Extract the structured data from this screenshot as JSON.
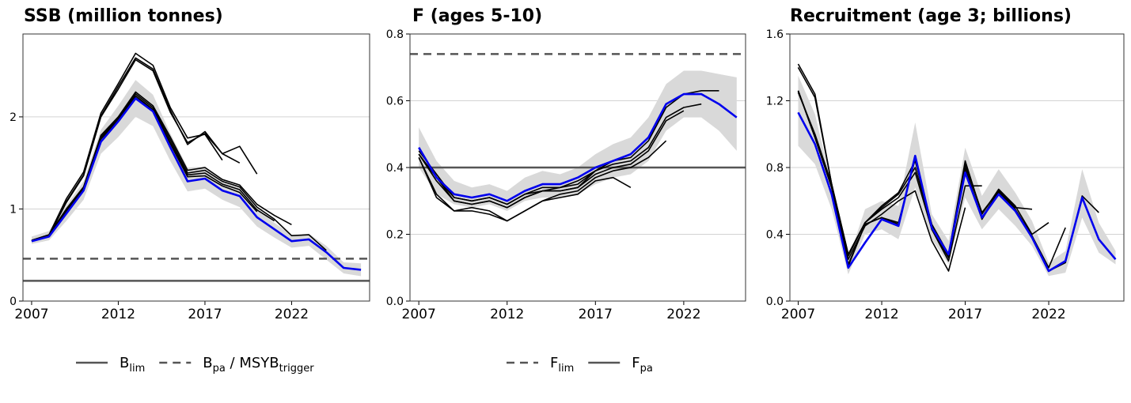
{
  "colors": {
    "band": "#d9d9d9",
    "grid": "#d3d3d3",
    "retro": "#000000",
    "current": "#0000ee",
    "refline": "#555555"
  },
  "chart_data": [
    {
      "id": "ssb",
      "type": "line",
      "title": "SSB (million tonnes)",
      "xlim": [
        2006.5,
        2026.5
      ],
      "ylim": [
        0,
        2.9
      ],
      "xticks": [
        "2007",
        "2012",
        "2017",
        "2022"
      ],
      "yticks": [
        "0",
        "1",
        "2"
      ],
      "band": {
        "x": [
          2007,
          2008,
          2009,
          2010,
          2011,
          2012,
          2013,
          2014,
          2015,
          2016,
          2017,
          2018,
          2019,
          2020,
          2021,
          2022,
          2023,
          2024,
          2025,
          2026
        ],
        "lower": [
          0.62,
          0.66,
          0.87,
          1.1,
          1.6,
          1.78,
          2.0,
          1.9,
          1.52,
          1.19,
          1.22,
          1.1,
          1.02,
          0.81,
          0.69,
          0.58,
          0.6,
          0.45,
          0.3,
          0.27
        ],
        "upper": [
          0.7,
          0.76,
          1.04,
          1.3,
          1.86,
          2.12,
          2.4,
          2.24,
          1.82,
          1.45,
          1.46,
          1.3,
          1.24,
          0.99,
          0.85,
          0.72,
          0.73,
          0.6,
          0.42,
          0.41
        ]
      },
      "retro_series": [
        {
          "x": [
            2007,
            2008,
            2009,
            2010,
            2011,
            2012,
            2013,
            2014,
            2015,
            2016,
            2017,
            2018
          ],
          "values": [
            0.66,
            0.72,
            1.11,
            1.4,
            2.04,
            2.36,
            2.69,
            2.56,
            2.1,
            1.77,
            1.81,
            1.53
          ]
        },
        {
          "x": [
            2007,
            2008,
            2009,
            2010,
            2011,
            2012,
            2013,
            2014,
            2015,
            2016,
            2017,
            2018,
            2019
          ],
          "values": [
            0.65,
            0.71,
            1.08,
            1.37,
            2.01,
            2.33,
            2.64,
            2.52,
            2.07,
            1.7,
            1.84,
            1.6,
            1.5
          ]
        },
        {
          "x": [
            2007,
            2008,
            2009,
            2010,
            2011,
            2012,
            2013,
            2014,
            2015,
            2016,
            2017,
            2018,
            2019,
            2020
          ],
          "values": [
            0.65,
            0.71,
            1.07,
            1.36,
            2.0,
            2.3,
            2.62,
            2.5,
            2.05,
            1.72,
            1.82,
            1.6,
            1.68,
            1.38
          ]
        },
        {
          "x": [
            2007,
            2008,
            2009,
            2010,
            2011,
            2012,
            2013,
            2014,
            2015,
            2016,
            2017,
            2018,
            2019,
            2020,
            2021,
            2022
          ],
          "values": [
            0.66,
            0.72,
            1.0,
            1.24,
            1.8,
            2.0,
            2.27,
            2.12,
            1.78,
            1.42,
            1.45,
            1.32,
            1.26,
            1.05,
            0.93,
            0.83
          ]
        },
        {
          "x": [
            2007,
            2008,
            2009,
            2010,
            2011,
            2012,
            2013,
            2014,
            2015,
            2016,
            2017,
            2018,
            2019,
            2020,
            2021,
            2022,
            2023,
            2024
          ],
          "values": [
            0.65,
            0.71,
            0.99,
            1.23,
            1.78,
            1.99,
            2.25,
            2.1,
            1.75,
            1.39,
            1.42,
            1.3,
            1.24,
            1.02,
            0.89,
            0.71,
            0.72,
            0.55
          ]
        },
        {
          "x": [
            2007,
            2008,
            2009,
            2010,
            2011,
            2012,
            2013,
            2014,
            2015,
            2016,
            2017,
            2018,
            2019,
            2020,
            2021
          ],
          "values": [
            0.65,
            0.71,
            0.98,
            1.22,
            1.77,
            1.97,
            2.23,
            2.08,
            1.72,
            1.37,
            1.39,
            1.27,
            1.21,
            0.99,
            0.87
          ]
        },
        {
          "x": [
            2007,
            2008,
            2009,
            2010,
            2011,
            2012,
            2013,
            2014,
            2015,
            2016,
            2017,
            2018,
            2019,
            2020
          ],
          "values": [
            0.65,
            0.71,
            0.97,
            1.21,
            1.76,
            1.96,
            2.21,
            2.07,
            1.71,
            1.35,
            1.36,
            1.25,
            1.18,
            0.97
          ]
        }
      ],
      "current_series": {
        "x": [
          2007,
          2008,
          2009,
          2010,
          2011,
          2012,
          2013,
          2014,
          2015,
          2016,
          2017,
          2018,
          2019,
          2020,
          2021,
          2022,
          2023,
          2024,
          2025,
          2026
        ],
        "values": [
          0.65,
          0.7,
          0.95,
          1.2,
          1.73,
          1.95,
          2.2,
          2.06,
          1.67,
          1.3,
          1.33,
          1.2,
          1.14,
          0.91,
          0.78,
          0.65,
          0.67,
          0.53,
          0.36,
          0.34
        ]
      },
      "ref_lines": [
        {
          "value": 0.22,
          "style": "solid"
        },
        {
          "value": 0.46,
          "style": "dashed"
        }
      ],
      "legend": [
        {
          "style": "solid",
          "main": "B",
          "sub": "lim",
          "after": ""
        },
        {
          "style": "dashed",
          "main": "B",
          "sub": "pa",
          "after": " / MSYB",
          "sub2": "trigger"
        }
      ]
    },
    {
      "id": "f",
      "type": "line",
      "title": "F (ages 5-10)",
      "xlim": [
        2006.5,
        2025.5
      ],
      "ylim": [
        0,
        0.8
      ],
      "xticks": [
        "2007",
        "2012",
        "2017",
        "2022"
      ],
      "yticks": [
        "0.0",
        "0.2",
        "0.4",
        "0.6",
        "0.8"
      ],
      "band": {
        "x": [
          2007,
          2008,
          2009,
          2010,
          2011,
          2012,
          2013,
          2014,
          2015,
          2016,
          2017,
          2018,
          2019,
          2020,
          2021,
          2022,
          2023,
          2024,
          2025
        ],
        "lower": [
          0.4,
          0.32,
          0.29,
          0.28,
          0.29,
          0.27,
          0.3,
          0.31,
          0.31,
          0.32,
          0.35,
          0.37,
          0.38,
          0.42,
          0.51,
          0.55,
          0.55,
          0.51,
          0.45
        ],
        "upper": [
          0.52,
          0.42,
          0.36,
          0.34,
          0.35,
          0.33,
          0.37,
          0.39,
          0.38,
          0.4,
          0.44,
          0.47,
          0.49,
          0.55,
          0.65,
          0.69,
          0.69,
          0.68,
          0.67
        ]
      },
      "retro_series": [
        {
          "x": [
            2007,
            2008,
            2009,
            2010,
            2011,
            2012,
            2013,
            2014,
            2015,
            2016,
            2017,
            2018,
            2019
          ],
          "values": [
            0.43,
            0.31,
            0.27,
            0.27,
            0.26,
            0.24,
            0.27,
            0.3,
            0.31,
            0.32,
            0.36,
            0.37,
            0.34
          ]
        },
        {
          "x": [
            2007,
            2008,
            2009,
            2010,
            2011,
            2012,
            2013,
            2014,
            2015,
            2016,
            2017,
            2018,
            2019,
            2020,
            2021
          ],
          "values": [
            0.43,
            0.32,
            0.27,
            0.28,
            0.27,
            0.24,
            0.27,
            0.3,
            0.32,
            0.33,
            0.37,
            0.39,
            0.4,
            0.43,
            0.48
          ]
        },
        {
          "x": [
            2007,
            2008,
            2009,
            2010,
            2011,
            2012,
            2013,
            2014,
            2015,
            2016,
            2017,
            2018,
            2019,
            2020,
            2021,
            2022
          ],
          "values": [
            0.44,
            0.36,
            0.3,
            0.29,
            0.3,
            0.28,
            0.31,
            0.33,
            0.33,
            0.34,
            0.38,
            0.4,
            0.41,
            0.45,
            0.54,
            0.57
          ]
        },
        {
          "x": [
            2007,
            2008,
            2009,
            2010,
            2011,
            2012,
            2013,
            2014,
            2015,
            2016,
            2017,
            2018,
            2019,
            2020,
            2021,
            2022,
            2023
          ],
          "values": [
            0.44,
            0.37,
            0.31,
            0.3,
            0.31,
            0.29,
            0.32,
            0.33,
            0.34,
            0.35,
            0.39,
            0.41,
            0.42,
            0.46,
            0.55,
            0.58,
            0.59
          ]
        },
        {
          "x": [
            2007,
            2008,
            2009,
            2010,
            2011,
            2012,
            2013,
            2014,
            2015,
            2016,
            2017,
            2018,
            2019,
            2020,
            2021,
            2022,
            2023,
            2024
          ],
          "values": [
            0.45,
            0.38,
            0.31,
            0.3,
            0.31,
            0.29,
            0.32,
            0.34,
            0.34,
            0.36,
            0.39,
            0.42,
            0.43,
            0.48,
            0.58,
            0.62,
            0.63,
            0.63
          ]
        },
        {
          "x": [
            2007,
            2008,
            2009,
            2010,
            2011,
            2012,
            2013,
            2014,
            2015,
            2016,
            2017,
            2018
          ],
          "values": [
            0.44,
            0.37,
            0.3,
            0.29,
            0.3,
            0.28,
            0.31,
            0.33,
            0.33,
            0.34,
            0.39,
            0.42
          ]
        }
      ],
      "current_series": {
        "x": [
          2007,
          2008,
          2009,
          2010,
          2011,
          2012,
          2013,
          2014,
          2015,
          2016,
          2017,
          2018,
          2019,
          2020,
          2021,
          2022,
          2023,
          2024,
          2025
        ],
        "values": [
          0.46,
          0.37,
          0.32,
          0.31,
          0.32,
          0.3,
          0.33,
          0.35,
          0.35,
          0.37,
          0.4,
          0.42,
          0.44,
          0.49,
          0.59,
          0.62,
          0.62,
          0.59,
          0.55
        ]
      },
      "ref_lines": [
        {
          "value": 0.74,
          "style": "dashed"
        },
        {
          "value": 0.4,
          "style": "solid"
        }
      ],
      "legend": [
        {
          "style": "dashed",
          "main": "F",
          "sub": "lim",
          "after": ""
        },
        {
          "style": "solid",
          "main": "F",
          "sub": "pa",
          "after": ""
        }
      ]
    },
    {
      "id": "rec",
      "type": "line",
      "title": "Recruitment (age 3; billions)",
      "xlim": [
        2006.5,
        2026.5
      ],
      "ylim": [
        0,
        1.6
      ],
      "xticks": [
        "2007",
        "2012",
        "2017",
        "2022"
      ],
      "yticks": [
        "0.0",
        "0.4",
        "0.8",
        "1.2",
        "1.6"
      ],
      "band": {
        "x": [
          2007,
          2008,
          2009,
          2010,
          2011,
          2012,
          2013,
          2014,
          2015,
          2016,
          2017,
          2018,
          2019,
          2020,
          2021,
          2022,
          2023,
          2024,
          2025,
          2026
        ],
        "lower": [
          0.93,
          0.82,
          0.55,
          0.16,
          0.4,
          0.43,
          0.37,
          0.68,
          0.37,
          0.22,
          0.62,
          0.43,
          0.55,
          0.45,
          0.33,
          0.15,
          0.17,
          0.5,
          0.29,
          0.22
        ],
        "upper": [
          1.35,
          1.12,
          0.7,
          0.25,
          0.55,
          0.6,
          0.57,
          1.07,
          0.52,
          0.36,
          0.92,
          0.63,
          0.79,
          0.65,
          0.48,
          0.23,
          0.3,
          0.79,
          0.47,
          0.3
        ]
      },
      "retro_series": [
        {
          "x": [
            2007,
            2008,
            2009,
            2010,
            2011,
            2012,
            2013,
            2014,
            2015,
            2016,
            2017
          ],
          "values": [
            1.42,
            1.24,
            0.7,
            0.25,
            0.45,
            0.52,
            0.6,
            0.66,
            0.36,
            0.18,
            0.56
          ]
        },
        {
          "x": [
            2007,
            2008,
            2009,
            2010,
            2011,
            2012,
            2013,
            2014,
            2015,
            2016,
            2017,
            2018
          ],
          "values": [
            1.4,
            1.22,
            0.7,
            0.28,
            0.47,
            0.55,
            0.62,
            0.77,
            0.43,
            0.24,
            0.69,
            0.69
          ]
        },
        {
          "x": [
            2007,
            2008,
            2009,
            2010,
            2011,
            2012,
            2013,
            2014,
            2015,
            2016,
            2017,
            2018,
            2019,
            2020,
            2021
          ],
          "values": [
            1.25,
            1.0,
            0.7,
            0.28,
            0.47,
            0.56,
            0.64,
            0.8,
            0.45,
            0.26,
            0.82,
            0.53,
            0.66,
            0.56,
            0.55
          ]
        },
        {
          "x": [
            2007,
            2008,
            2009,
            2010,
            2011,
            2012,
            2013,
            2014,
            2015,
            2016,
            2017,
            2018,
            2019,
            2020,
            2021,
            2022
          ],
          "values": [
            1.26,
            0.98,
            0.68,
            0.27,
            0.47,
            0.57,
            0.65,
            0.84,
            0.46,
            0.28,
            0.84,
            0.52,
            0.67,
            0.57,
            0.4,
            0.47
          ]
        },
        {
          "x": [
            2007,
            2008,
            2009,
            2010,
            2011,
            2012,
            2013,
            2014,
            2015,
            2016,
            2017,
            2018,
            2019,
            2020,
            2021,
            2022,
            2023
          ],
          "values": [
            1.26,
            0.98,
            0.68,
            0.22,
            0.46,
            0.5,
            0.47,
            0.85,
            0.43,
            0.27,
            0.8,
            0.5,
            0.66,
            0.55,
            0.39,
            0.2,
            0.44
          ]
        },
        {
          "x": [
            2007,
            2008,
            2009,
            2010,
            2011,
            2012,
            2013,
            2014,
            2015,
            2016,
            2017,
            2018,
            2019,
            2020,
            2021,
            2022,
            2023,
            2024,
            2025
          ],
          "values": [
            1.26,
            0.99,
            0.68,
            0.21,
            0.46,
            0.5,
            0.46,
            0.86,
            0.43,
            0.26,
            0.78,
            0.49,
            0.65,
            0.54,
            0.39,
            0.18,
            0.23,
            0.63,
            0.53
          ]
        }
      ],
      "current_series": {
        "x": [
          2007,
          2008,
          2009,
          2010,
          2011,
          2012,
          2013,
          2014,
          2015,
          2016,
          2017,
          2018,
          2019,
          2020,
          2021,
          2022,
          2023,
          2024,
          2025,
          2026
        ],
        "values": [
          1.13,
          0.94,
          0.64,
          0.2,
          0.35,
          0.49,
          0.45,
          0.87,
          0.44,
          0.28,
          0.77,
          0.5,
          0.64,
          0.54,
          0.38,
          0.18,
          0.24,
          0.62,
          0.37,
          0.25
        ]
      },
      "ref_lines": [],
      "legend": []
    }
  ]
}
